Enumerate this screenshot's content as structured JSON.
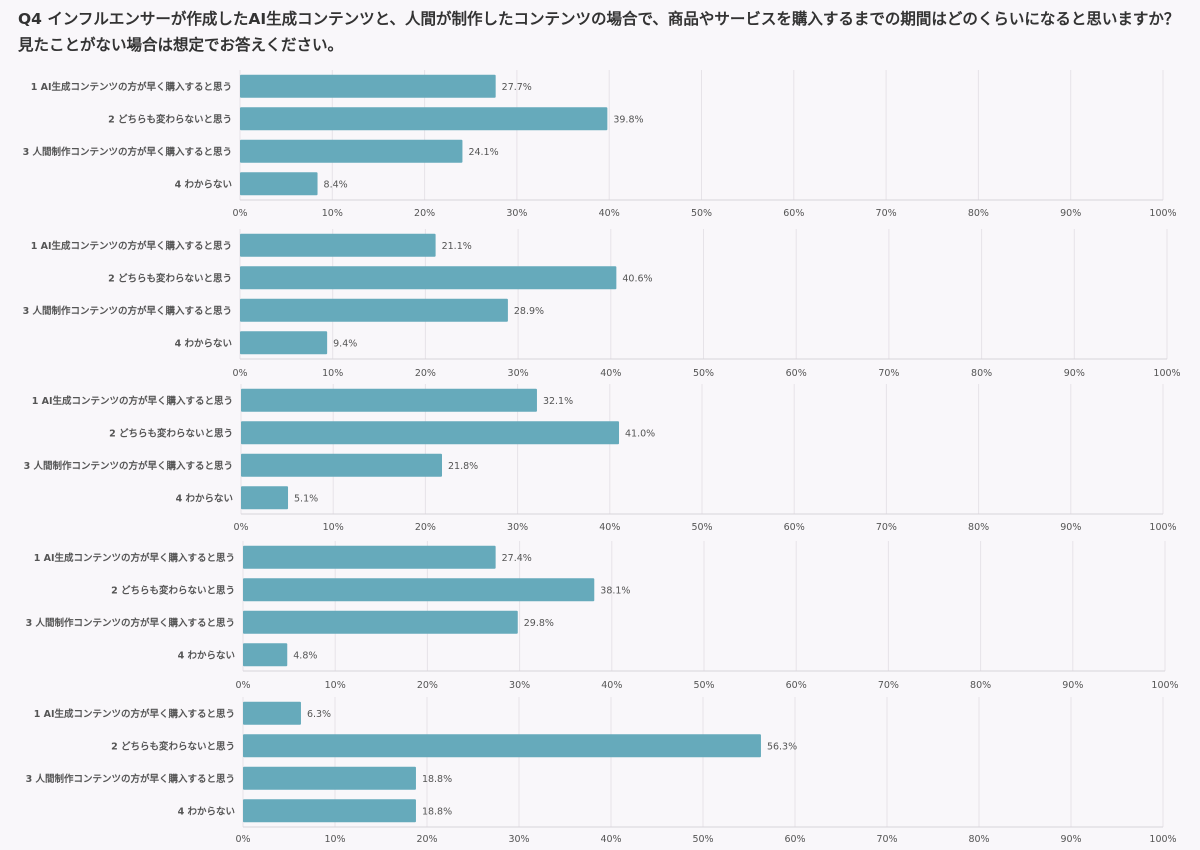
{
  "title": "Q4 インフルエンサーが作成したAI生成コンテンツと、人間が制作したコンテンツの場合で、商品やサービスを購入するまでの期間はどのくらいになると思いますか？見たことがない場合は想定でお答えください。",
  "colors": {
    "bar": "#66aabb",
    "grid": "#e6e3e8",
    "background": "#f9f7fa"
  },
  "chart_data": [
    {
      "type": "bar",
      "orientation": "horizontal",
      "categories": [
        "1 AI生成コンテンツの方が早く購入すると思う",
        "2 どちらも変わらないと思う",
        "3 人間制作コンテンツの方が早く購入すると思う",
        "4 わからない"
      ],
      "values": [
        27.7,
        39.8,
        24.1,
        8.4
      ],
      "value_labels": [
        "27.7%",
        "39.8%",
        "24.1%",
        "8.4%"
      ],
      "xlim": [
        0,
        100
      ],
      "xticks": [
        "0%",
        "10%",
        "20%",
        "30%",
        "40%",
        "50%",
        "60%",
        "70%",
        "80%",
        "90%",
        "100%"
      ]
    },
    {
      "type": "bar",
      "orientation": "horizontal",
      "categories": [
        "1 AI生成コンテンツの方が早く購入すると思う",
        "2 どちらも変わらないと思う",
        "3 人間制作コンテンツの方が早く購入すると思う",
        "4 わからない"
      ],
      "values": [
        21.1,
        40.6,
        28.9,
        9.4
      ],
      "value_labels": [
        "21.1%",
        "40.6%",
        "28.9%",
        "9.4%"
      ],
      "xlim": [
        0,
        100
      ],
      "xticks": [
        "0%",
        "10%",
        "20%",
        "30%",
        "40%",
        "50%",
        "60%",
        "70%",
        "80%",
        "90%",
        "100%"
      ]
    },
    {
      "type": "bar",
      "orientation": "horizontal",
      "categories": [
        "1 AI生成コンテンツの方が早く購入すると思う",
        "2 どちらも変わらないと思う",
        "3 人間制作コンテンツの方が早く購入すると思う",
        "4 わからない"
      ],
      "values": [
        32.1,
        41.0,
        21.8,
        5.1
      ],
      "value_labels": [
        "32.1%",
        "41.0%",
        "21.8%",
        "5.1%"
      ],
      "xlim": [
        0,
        100
      ],
      "xticks": [
        "0%",
        "10%",
        "20%",
        "30%",
        "40%",
        "50%",
        "60%",
        "70%",
        "80%",
        "90%",
        "100%"
      ]
    },
    {
      "type": "bar",
      "orientation": "horizontal",
      "categories": [
        "1 AI生成コンテンツの方が早く購入すると思う",
        "2 どちらも変わらないと思う",
        "3 人間制作コンテンツの方が早く購入すると思う",
        "4 わからない"
      ],
      "values": [
        27.4,
        38.1,
        29.8,
        4.8
      ],
      "value_labels": [
        "27.4%",
        "38.1%",
        "29.8%",
        "4.8%"
      ],
      "xlim": [
        0,
        100
      ],
      "xticks": [
        "0%",
        "10%",
        "20%",
        "30%",
        "40%",
        "50%",
        "60%",
        "70%",
        "80%",
        "90%",
        "100%"
      ]
    },
    {
      "type": "bar",
      "orientation": "horizontal",
      "categories": [
        "1 AI生成コンテンツの方が早く購入すると思う",
        "2 どちらも変わらないと思う",
        "3 人間制作コンテンツの方が早く購入すると思う",
        "4 わからない"
      ],
      "values": [
        6.3,
        56.3,
        18.8,
        18.8
      ],
      "value_labels": [
        "6.3%",
        "56.3%",
        "18.8%",
        "18.8%"
      ],
      "xlim": [
        0,
        100
      ],
      "xticks": [
        "0%",
        "10%",
        "20%",
        "30%",
        "40%",
        "50%",
        "60%",
        "70%",
        "80%",
        "90%",
        "100%"
      ]
    }
  ]
}
